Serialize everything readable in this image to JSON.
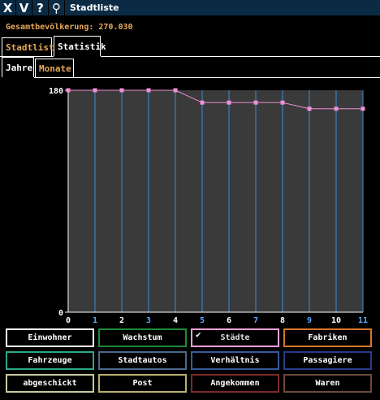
{
  "window": {
    "buttons": [
      {
        "label": "X"
      },
      {
        "label": "V"
      },
      {
        "label": "?"
      },
      {
        "label": "⚲"
      }
    ],
    "title": "Stadtliste"
  },
  "population": "Gesamtbevölkerung: 270.030",
  "tabs": [
    {
      "label": "Stadtliste",
      "active": false
    },
    {
      "label": "Statistik",
      "active": true
    }
  ],
  "subtabs": [
    {
      "label": "Jahre",
      "active": true
    },
    {
      "label": "Monate",
      "active": false
    }
  ],
  "chart_data": {
    "type": "line",
    "x": [
      0,
      1,
      2,
      3,
      4,
      5,
      6,
      7,
      8,
      9,
      10,
      11
    ],
    "series": [
      {
        "values": [
          180,
          180,
          180,
          180,
          180,
          170,
          170,
          170,
          170,
          165,
          165,
          165
        ],
        "color": "#f090d8"
      }
    ],
    "ylim": [
      0,
      180
    ],
    "yticks": [
      "0",
      "180"
    ],
    "xtick_colors": [
      "#ffffff",
      "#5aa8ff",
      "#ffffff",
      "#5aa8ff",
      "#ffffff",
      "#5aa8ff",
      "#ffffff",
      "#5aa8ff",
      "#ffffff",
      "#5aa8ff",
      "#ffffff",
      "#5aa8ff"
    ],
    "gridline_color": "#3a8fd8",
    "plot_bg": "#3a3a3a",
    "grid": true
  },
  "buttons": [
    {
      "label": "Einwohner",
      "color": "#ffffff",
      "checked": false
    },
    {
      "label": "Wachstum",
      "color": "#1e8a3a",
      "checked": false
    },
    {
      "label": "Städte",
      "color": "#f0a0d8",
      "checked": true
    },
    {
      "label": "Fabriken",
      "color": "#d8762a",
      "checked": false
    },
    {
      "label": "Fahrzeuge",
      "color": "#2aa88a",
      "checked": false
    },
    {
      "label": "Stadtautos",
      "color": "#4a6a8a",
      "checked": false
    },
    {
      "label": "Verhältnis",
      "color": "#3a5a9a",
      "checked": false
    },
    {
      "label": "Passagiere",
      "color": "#2a3a8a",
      "checked": false
    },
    {
      "label": "abgeschickt",
      "color": "#c8c8a0",
      "checked": false
    },
    {
      "label": "Post",
      "color": "#b8b070",
      "checked": false
    },
    {
      "label": "Angekommen",
      "color": "#7a2a2a",
      "checked": false
    },
    {
      "label": "Waren",
      "color": "#6a4a3a",
      "checked": false
    }
  ]
}
